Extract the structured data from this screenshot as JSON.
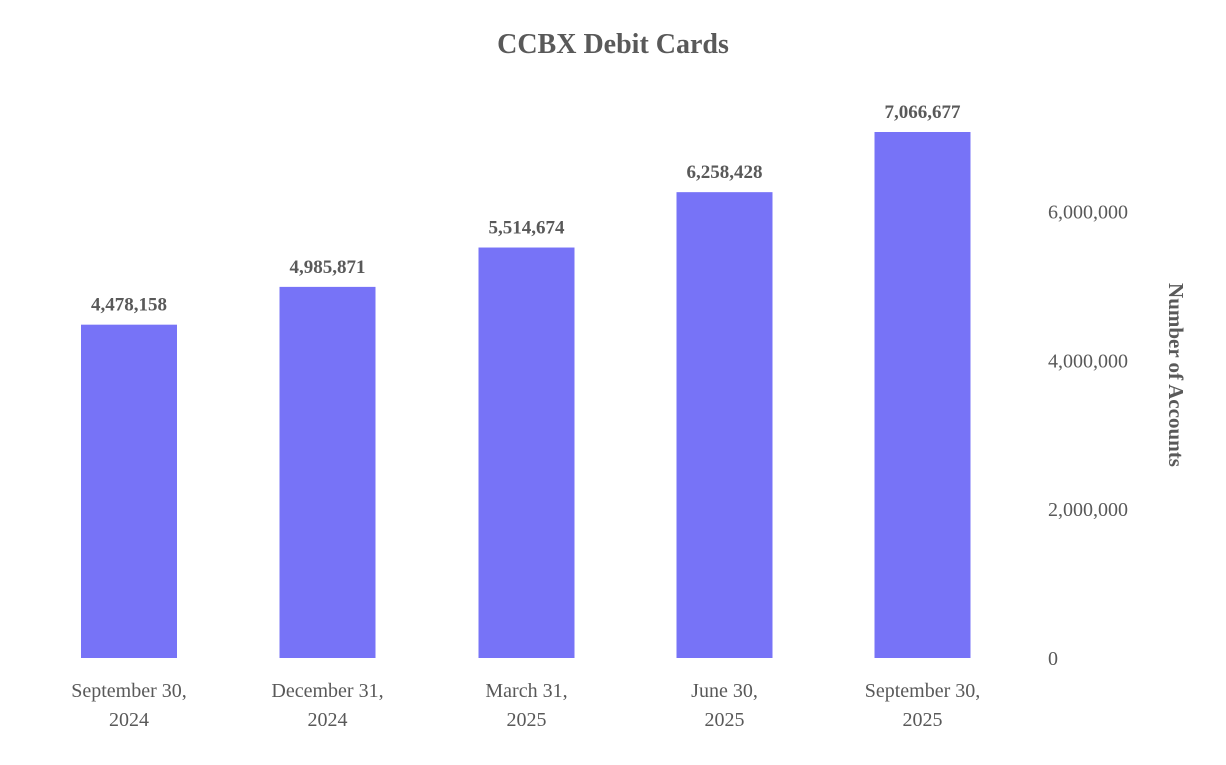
{
  "chart_data": {
    "type": "bar",
    "title": "CCBX Debit Cards",
    "categories": [
      [
        "September 30,",
        "2024"
      ],
      [
        "December 31,",
        "2024"
      ],
      [
        "March 31,",
        "2025"
      ],
      [
        "June 30,",
        "2025"
      ],
      [
        "September 30,",
        "2025"
      ]
    ],
    "values": [
      4478158,
      4985871,
      5514674,
      6258428,
      7066677
    ],
    "data_labels": [
      "4,478,158",
      "4,985,871",
      "5,514,674",
      "6,258,428",
      "7,066,677"
    ],
    "ylabel": "Number of Accounts",
    "ylim": [
      0,
      7066677
    ],
    "yticks": [
      0,
      2000000,
      4000000,
      6000000
    ],
    "ytick_labels": [
      "0",
      "2,000,000",
      "4,000,000",
      "6,000,000"
    ],
    "y_axis_side": "right",
    "grid": false,
    "legend": "none",
    "colors": {
      "bar": "#7773F7",
      "text": "#595959"
    }
  }
}
